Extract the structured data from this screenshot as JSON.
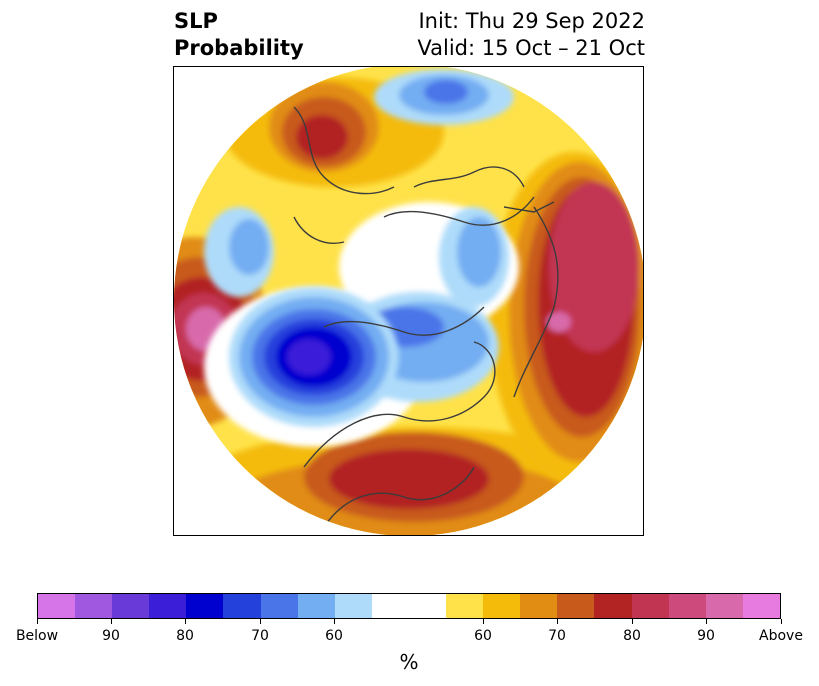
{
  "title": {
    "left_line1": "SLP",
    "left_line2": "Probability",
    "right_line1": "Init: Thu 29 Sep 2022",
    "right_line2": "Valid: 15 Oct – 21 Oct"
  },
  "colorbar": {
    "unit": "%",
    "colors": [
      "#d575e8",
      "#a158e0",
      "#6a3ad9",
      "#3b1ed8",
      "#0000cf",
      "#2541dc",
      "#4a75e8",
      "#73adf2",
      "#aedbfa",
      "#ffffff",
      "#ffffff",
      "#ffe24a",
      "#f4bb0a",
      "#e18c12",
      "#c85a1b",
      "#b22424",
      "#c23552",
      "#cc4a7c",
      "#d86aab",
      "#e77be0"
    ],
    "labels": [
      "Below",
      "90",
      "80",
      "70",
      "60",
      "60",
      "70",
      "80",
      "90",
      "Above"
    ]
  },
  "map": {
    "regions": [
      {
        "name": "above-normal-north-america",
        "category": "Above 80"
      },
      {
        "name": "above-normal-siberia",
        "category": "Above 90"
      },
      {
        "name": "above-normal-europe",
        "category": "Above 80"
      },
      {
        "name": "above-normal-pacific",
        "category": "Above 90"
      },
      {
        "name": "below-normal-alaska",
        "category": "Below 90"
      },
      {
        "name": "below-normal-arctic",
        "category": "Below 70"
      },
      {
        "name": "below-normal-scandinavia",
        "category": "Below 60"
      }
    ]
  }
}
